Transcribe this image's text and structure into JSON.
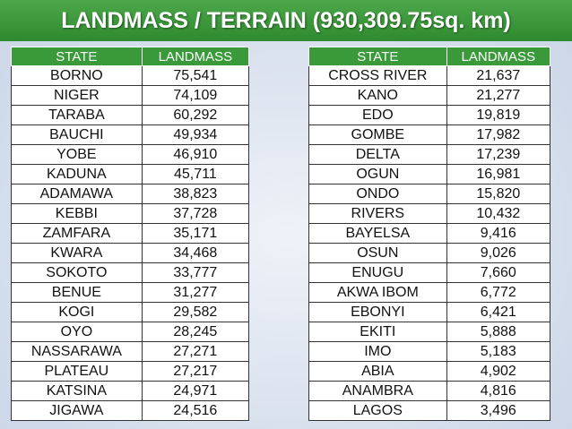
{
  "title": "LANDMASS / TERRAIN (930,309.75sq. km)",
  "tables": [
    {
      "headers": [
        "STATE",
        "LANDMASS"
      ],
      "rows": [
        [
          "BORNO",
          "75,541"
        ],
        [
          "NIGER",
          "74,109"
        ],
        [
          "TARABA",
          "60,292"
        ],
        [
          "BAUCHI",
          "49,934"
        ],
        [
          "YOBE",
          "46,910"
        ],
        [
          "KADUNA",
          "45,711"
        ],
        [
          "ADAMAWA",
          "38,823"
        ],
        [
          "KEBBI",
          "37,728"
        ],
        [
          "ZAMFARA",
          "35,171"
        ],
        [
          "KWARA",
          "34,468"
        ],
        [
          "SOKOTO",
          "33,777"
        ],
        [
          "BENUE",
          "31,277"
        ],
        [
          "KOGI",
          "29,582"
        ],
        [
          "OYO",
          "28,245"
        ],
        [
          "NASSARAWA",
          "27,271"
        ],
        [
          "PLATEAU",
          "27,217"
        ],
        [
          "KATSINA",
          "24,971"
        ],
        [
          "JIGAWA",
          "24,516"
        ]
      ]
    },
    {
      "headers": [
        "STATE",
        "LANDMASS"
      ],
      "rows": [
        [
          "CROSS RIVER",
          "21,637"
        ],
        [
          "KANO",
          "21,277"
        ],
        [
          "EDO",
          "19,819"
        ],
        [
          "GOMBE",
          "17,982"
        ],
        [
          "DELTA",
          "17,239"
        ],
        [
          "OGUN",
          "16,981"
        ],
        [
          "ONDO",
          "15,820"
        ],
        [
          "RIVERS",
          "10,432"
        ],
        [
          "BAYELSA",
          "9,416"
        ],
        [
          "OSUN",
          "9,026"
        ],
        [
          "ENUGU",
          "7,660"
        ],
        [
          "AKWA IBOM",
          "6,772"
        ],
        [
          "EBONYI",
          "6,421"
        ],
        [
          "EKITI",
          "5,888"
        ],
        [
          "IMO",
          "5,183"
        ],
        [
          "ABIA",
          "4,902"
        ],
        [
          "ANAMBRA",
          "4,816"
        ],
        [
          "LAGOS",
          "3,496"
        ]
      ]
    }
  ]
}
